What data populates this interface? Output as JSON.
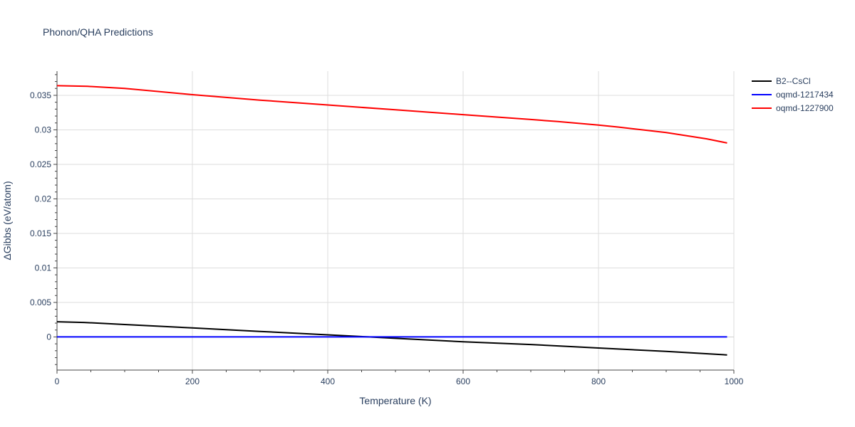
{
  "chart_data": {
    "type": "line",
    "title": "Phonon/QHA Predictions",
    "xlabel": "Temperature (K)",
    "ylabel": "ΔGibbs (eV/atom)",
    "xlim": [
      0,
      1000
    ],
    "ylim": [
      -0.0048,
      0.0385
    ],
    "grid": true,
    "legend_position": "top-right",
    "x_ticks": [
      0,
      200,
      400,
      600,
      800,
      1000
    ],
    "x_tick_labels": [
      "0",
      "200",
      "400",
      "600",
      "800",
      "1000"
    ],
    "y_ticks": [
      0,
      0.005,
      0.01,
      0.015,
      0.02,
      0.025,
      0.03,
      0.035
    ],
    "y_tick_labels": [
      "0",
      "0.005",
      "0.01",
      "0.015",
      "0.02",
      "0.025",
      "0.03",
      "0.035"
    ],
    "series": [
      {
        "name": "B2--CsCl",
        "color": "#000000",
        "x": [
          0,
          40,
          100,
          200,
          300,
          400,
          460,
          500,
          600,
          700,
          800,
          900,
          990
        ],
        "y": [
          0.0022,
          0.0021,
          0.0018,
          0.0013,
          0.0008,
          0.0003,
          0.0,
          -0.0002,
          -0.0007,
          -0.0011,
          -0.0016,
          -0.0021,
          -0.0026
        ]
      },
      {
        "name": "oqmd-1217434",
        "color": "#0000ff",
        "x": [
          0,
          200,
          400,
          600,
          800,
          990
        ],
        "y": [
          0,
          0,
          0,
          0,
          0,
          0
        ]
      },
      {
        "name": "oqmd-1227900",
        "color": "#ff0000",
        "x": [
          0,
          45,
          100,
          200,
          300,
          400,
          500,
          600,
          700,
          740,
          800,
          830,
          900,
          960,
          990
        ],
        "y": [
          0.0364,
          0.0363,
          0.036,
          0.0351,
          0.0343,
          0.0336,
          0.0329,
          0.0322,
          0.0315,
          0.0312,
          0.0307,
          0.0304,
          0.0296,
          0.0287,
          0.0281
        ]
      }
    ]
  }
}
